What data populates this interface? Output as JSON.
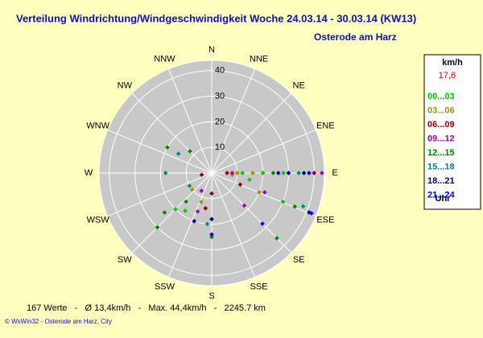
{
  "chart_data": {
    "type": "wind-rose",
    "title": "Verteilung Windrichtung/Windgeschwindigkeit  Woche 24.03.14 - 30.03.14 (KW13)",
    "subtitle": "Osterode am Harz",
    "directions": [
      "N",
      "NNE",
      "NE",
      "ENE",
      "E",
      "ESE",
      "SE",
      "SSE",
      "S",
      "SSW",
      "SW",
      "WSW",
      "W",
      "WNW",
      "NW",
      "NNW"
    ],
    "rlim": [
      0,
      44
    ],
    "rticks": [
      10,
      20,
      30,
      40
    ],
    "legend_title": "km/h",
    "legend_value": "17,6",
    "legend_footer": "Uhr",
    "series": [
      {
        "name": "00...03",
        "color": "#00cc00",
        "x": [
          90,
          90,
          100,
          112,
          225,
          215,
          90
        ],
        "values": [
          12,
          20,
          15,
          30,
          20,
          18,
          28
        ]
      },
      {
        "name": "03...06",
        "color": "#999900",
        "x": [
          90,
          95,
          112,
          200,
          230,
          90
        ],
        "values": [
          10,
          8,
          20,
          12,
          10,
          16
        ]
      },
      {
        "name": "06...09",
        "color": "#990000",
        "x": [
          90,
          112,
          180,
          190,
          260,
          90
        ],
        "values": [
          6,
          12,
          8,
          14,
          4,
          40
        ]
      },
      {
        "name": "09...12",
        "color": "#aa00aa",
        "x": [
          90,
          110,
          135,
          200,
          210,
          90
        ],
        "values": [
          8,
          22,
          18,
          16,
          8,
          43
        ]
      },
      {
        "name": "12...15",
        "color": "#008800",
        "x": [
          225,
          230,
          222,
          112,
          135,
          180,
          300,
          315,
          90
        ],
        "values": [
          30,
          24,
          15,
          35,
          36,
          25,
          20,
          12,
          24
        ]
      },
      {
        "name": "15...18",
        "color": "#008888",
        "x": [
          300,
          270,
          110,
          90,
          185,
          240
        ],
        "values": [
          15,
          18,
          38,
          34,
          20,
          10
        ]
      },
      {
        "name": "18...21",
        "color": "#000088",
        "x": [
          90,
          112,
          180,
          200,
          90
        ],
        "values": [
          36,
          41,
          18,
          20,
          30
        ]
      },
      {
        "name": "21...24",
        "color": "#0000ff",
        "x": [
          90,
          112,
          180,
          135,
          90
        ],
        "values": [
          38,
          42,
          24,
          28,
          26
        ]
      }
    ],
    "footer": "167 Werte   -   Ø 13,4km/h   -   Max. 44,4km/h   -   2245.7 km",
    "copyright": "© WsWin32  -  Osterode am Harz, City"
  }
}
